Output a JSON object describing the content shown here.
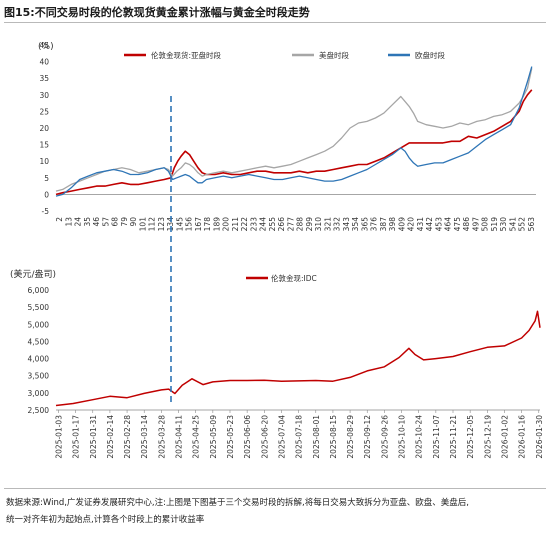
{
  "header": {
    "figure_label": "图15:",
    "title": "不同交易时段的伦敦现货黄金累计涨幅与黄金全时段走势"
  },
  "footer": {
    "source_line": "数据来源:Wind,广发证券发展研究中心,注:上图是下图基于三个交易时段的拆解,将每日交易大致拆分为亚盘、欧盘、美盘后,",
    "note_line": "统一对齐年初为起始点,计算各个时段上的累计收益率"
  },
  "colors": {
    "asia": "#c00000",
    "us": "#a6a6a6",
    "europe": "#2e75b6",
    "idc": "#c00000",
    "marker": "#2e75b6",
    "axis": "#888888"
  },
  "chart_data": [
    {
      "type": "line",
      "unit_label": "(%)",
      "ylim": [
        -5,
        45
      ],
      "yticks": [
        -5,
        0,
        5,
        10,
        15,
        20,
        25,
        30,
        35,
        40,
        45
      ],
      "xlim": [
        2,
        570
      ],
      "xtick_labels": [
        "2",
        "13",
        "24",
        "35",
        "46",
        "57",
        "68",
        "79",
        "90",
        "101",
        "112",
        "123",
        "134",
        "145",
        "156",
        "167",
        "178",
        "189",
        "200",
        "211",
        "222",
        "233",
        "244",
        "255",
        "266",
        "277",
        "288",
        "299",
        "310",
        "321",
        "332",
        "343",
        "354",
        "365",
        "376",
        "387",
        "398",
        "409",
        "420",
        "431",
        "442",
        "453",
        "464",
        "475",
        "486",
        "497",
        "508",
        "519",
        "530",
        "541",
        "552",
        "563"
      ],
      "marker_x": 138,
      "legend_position": "top",
      "series": [
        {
          "name": "伦敦金现货:亚盘时段",
          "color": "#c00000",
          "x": [
            2,
            10,
            20,
            30,
            40,
            50,
            60,
            70,
            80,
            90,
            100,
            110,
            120,
            130,
            138,
            142,
            146,
            150,
            155,
            160,
            165,
            170,
            175,
            180,
            190,
            200,
            210,
            220,
            230,
            240,
            250,
            260,
            270,
            280,
            290,
            300,
            310,
            320,
            330,
            340,
            350,
            360,
            370,
            380,
            390,
            400,
            410,
            420,
            430,
            440,
            450,
            460,
            470,
            480,
            490,
            500,
            510,
            520,
            530,
            540,
            550,
            555,
            560,
            565
          ],
          "y": [
            0.0,
            0.5,
            1.0,
            1.5,
            2.0,
            2.5,
            2.5,
            3.0,
            3.5,
            3.0,
            3.0,
            3.5,
            4.0,
            4.5,
            5.0,
            8.0,
            10.0,
            11.5,
            13.0,
            12.0,
            10.0,
            8.0,
            6.5,
            6.0,
            6.0,
            6.5,
            6.0,
            6.0,
            6.5,
            7.0,
            7.0,
            6.5,
            6.5,
            6.5,
            7.0,
            6.5,
            7.0,
            7.0,
            7.5,
            8.0,
            8.5,
            9.0,
            9.0,
            10.0,
            11.0,
            12.5,
            14.0,
            15.5,
            15.5,
            15.5,
            15.5,
            15.5,
            16.0,
            16.0,
            17.5,
            17.0,
            18.0,
            19.0,
            20.5,
            22.0,
            25.0,
            28.0,
            30.0,
            31.5
          ]
        },
        {
          "name": "美盘时段",
          "color": "#a6a6a6",
          "x": [
            2,
            10,
            20,
            30,
            40,
            50,
            60,
            70,
            80,
            90,
            100,
            110,
            120,
            130,
            135,
            140,
            145,
            150,
            155,
            160,
            165,
            170,
            175,
            180,
            190,
            200,
            210,
            220,
            230,
            240,
            250,
            260,
            270,
            280,
            290,
            300,
            310,
            320,
            330,
            340,
            350,
            360,
            370,
            380,
            390,
            400,
            410,
            415,
            420,
            425,
            430,
            440,
            450,
            460,
            470,
            480,
            490,
            500,
            510,
            520,
            530,
            540,
            550,
            555,
            560,
            565
          ],
          "y": [
            1.0,
            1.5,
            3.0,
            4.0,
            5.0,
            6.0,
            7.0,
            7.5,
            8.0,
            7.5,
            6.5,
            7.0,
            7.5,
            8.0,
            7.5,
            5.5,
            7.0,
            8.0,
            9.5,
            9.0,
            8.0,
            6.5,
            5.5,
            6.0,
            6.5,
            7.0,
            6.5,
            7.0,
            7.5,
            8.0,
            8.5,
            8.0,
            8.5,
            9.0,
            10.0,
            11.0,
            12.0,
            13.0,
            14.5,
            17.0,
            20.0,
            21.5,
            22.0,
            23.0,
            24.5,
            27.0,
            29.5,
            28.0,
            26.5,
            24.5,
            22.0,
            21.0,
            20.5,
            20.0,
            20.5,
            21.5,
            21.0,
            22.0,
            22.5,
            23.5,
            24.0,
            25.0,
            27.5,
            29.5,
            32.0,
            38.0
          ]
        },
        {
          "name": "欧盘时段",
          "color": "#2e75b6",
          "x": [
            2,
            10,
            20,
            30,
            40,
            50,
            60,
            70,
            80,
            90,
            100,
            110,
            120,
            130,
            135,
            140,
            145,
            150,
            155,
            160,
            165,
            170,
            175,
            180,
            190,
            200,
            210,
            220,
            230,
            240,
            250,
            260,
            270,
            280,
            290,
            300,
            310,
            320,
            330,
            340,
            350,
            360,
            370,
            380,
            390,
            400,
            410,
            415,
            420,
            425,
            430,
            440,
            450,
            460,
            470,
            480,
            490,
            500,
            510,
            520,
            530,
            540,
            550,
            555,
            560,
            565
          ],
          "y": [
            -0.5,
            0.0,
            2.0,
            4.5,
            5.5,
            6.5,
            7.0,
            7.5,
            7.0,
            6.0,
            6.0,
            6.5,
            7.5,
            8.0,
            7.0,
            4.5,
            5.0,
            5.5,
            6.0,
            5.5,
            4.5,
            3.5,
            3.5,
            4.5,
            5.0,
            5.5,
            5.0,
            5.5,
            6.0,
            5.5,
            5.0,
            4.5,
            4.5,
            5.0,
            5.5,
            5.0,
            4.5,
            4.0,
            4.0,
            4.5,
            5.5,
            6.5,
            7.5,
            9.0,
            10.5,
            12.0,
            14.0,
            13.0,
            11.0,
            9.5,
            8.5,
            9.0,
            9.5,
            9.5,
            10.5,
            11.5,
            12.5,
            14.5,
            16.5,
            18.0,
            19.5,
            21.0,
            26.0,
            30.0,
            34.0,
            38.5
          ]
        }
      ]
    },
    {
      "type": "line",
      "unit_label": "(美元/盎司)",
      "ylim": [
        2500,
        6000
      ],
      "yticks": [
        2500,
        3000,
        3500,
        4000,
        4500,
        5000,
        5500,
        6000
      ],
      "xlim": [
        "2025-01-01",
        "2026-01-31"
      ],
      "xtick_labels": [
        "2025-01-03",
        "2025-01-17",
        "2025-01-31",
        "2025-02-14",
        "2025-02-28",
        "2025-03-14",
        "2025-03-28",
        "2025-04-11",
        "2025-04-25",
        "2025-05-09",
        "2025-05-23",
        "2025-06-06",
        "2025-06-20",
        "2025-07-04",
        "2025-07-18",
        "2025-08-01",
        "2025-08-15",
        "2025-08-29",
        "2025-09-12",
        "2025-09-26",
        "2025-10-10",
        "2025-10-24",
        "2025-11-07",
        "2025-11-21",
        "2025-12-05",
        "2025-12-19",
        "2026-01-02",
        "2026-01-16",
        "2026-01-30"
      ],
      "marker_date": "2025-04-08",
      "legend_position": "top",
      "series": [
        {
          "name": "伦敦金现:IDC",
          "color": "#c00000",
          "x": [
            "2025-01-01",
            "2025-01-15",
            "2025-01-31",
            "2025-02-14",
            "2025-02-28",
            "2025-03-14",
            "2025-03-28",
            "2025-04-03",
            "2025-04-08",
            "2025-04-14",
            "2025-04-22",
            "2025-05-01",
            "2025-05-09",
            "2025-05-23",
            "2025-06-06",
            "2025-06-20",
            "2025-07-04",
            "2025-07-18",
            "2025-08-01",
            "2025-08-15",
            "2025-08-29",
            "2025-09-12",
            "2025-09-26",
            "2025-10-08",
            "2025-10-16",
            "2025-10-21",
            "2025-10-28",
            "2025-11-07",
            "2025-11-21",
            "2025-12-05",
            "2025-12-19",
            "2026-01-02",
            "2026-01-16",
            "2026-01-22",
            "2026-01-27",
            "2026-01-29",
            "2026-01-31"
          ],
          "y": [
            2630,
            2690,
            2800,
            2900,
            2860,
            2985,
            3085,
            3110,
            2980,
            3220,
            3410,
            3240,
            3320,
            3360,
            3360,
            3370,
            3340,
            3350,
            3360,
            3340,
            3450,
            3640,
            3760,
            4030,
            4300,
            4120,
            3960,
            4000,
            4060,
            4200,
            4330,
            4370,
            4600,
            4820,
            5100,
            5380,
            4900
          ]
        }
      ]
    }
  ]
}
